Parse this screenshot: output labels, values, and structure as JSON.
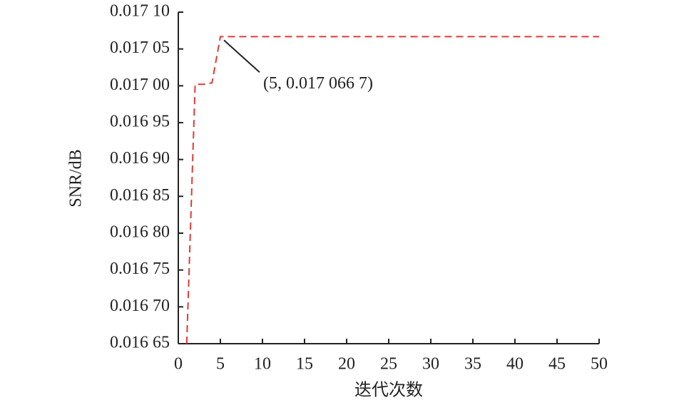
{
  "chart_data": {
    "type": "line",
    "xlabel": "迭代次数",
    "ylabel": "SNR/dB",
    "x": [
      1,
      2,
      3,
      4,
      5,
      6,
      7,
      8,
      9,
      10,
      11,
      12,
      13,
      14,
      15,
      16,
      17,
      18,
      19,
      20,
      21,
      22,
      23,
      24,
      25,
      26,
      27,
      28,
      29,
      30,
      31,
      32,
      33,
      34,
      35,
      36,
      37,
      38,
      39,
      40,
      41,
      42,
      43,
      44,
      45,
      46,
      47,
      48,
      49,
      50
    ],
    "series": [
      {
        "color": "#e03a33",
        "values": [
          0.01665,
          0.017002,
          0.017002,
          0.017004,
          0.0170667,
          0.0170667,
          0.0170667,
          0.0170667,
          0.0170667,
          0.0170667,
          0.0170667,
          0.0170667,
          0.0170667,
          0.0170667,
          0.0170667,
          0.0170667,
          0.0170667,
          0.0170667,
          0.0170667,
          0.0170667,
          0.0170667,
          0.0170667,
          0.0170667,
          0.0170667,
          0.0170667,
          0.0170667,
          0.0170667,
          0.0170667,
          0.0170667,
          0.0170667,
          0.0170667,
          0.0170667,
          0.0170667,
          0.0170667,
          0.0170667,
          0.0170667,
          0.0170667,
          0.0170667,
          0.0170667,
          0.0170667,
          0.0170667,
          0.0170667,
          0.0170667,
          0.0170667,
          0.0170667,
          0.0170667,
          0.0170667,
          0.0170667,
          0.0170667,
          0.0170667
        ]
      }
    ],
    "xlim": [
      0,
      50
    ],
    "xticks": [
      0,
      5,
      10,
      15,
      20,
      25,
      30,
      35,
      40,
      45,
      50
    ],
    "ylim": [
      0.01665,
      0.0171
    ],
    "yticks": [
      {
        "value": 0.01665,
        "label": "0.016 65"
      },
      {
        "value": 0.0167,
        "label": "0.016 70"
      },
      {
        "value": 0.01675,
        "label": "0.016 75"
      },
      {
        "value": 0.0168,
        "label": "0.016 80"
      },
      {
        "value": 0.01685,
        "label": "0.016 85"
      },
      {
        "value": 0.0169,
        "label": "0.016 90"
      },
      {
        "value": 0.01695,
        "label": "0.016 95"
      },
      {
        "value": 0.017,
        "label": "0.017 00"
      },
      {
        "value": 0.01705,
        "label": "0.017 05"
      },
      {
        "value": 0.0171,
        "label": "0.017 10"
      }
    ],
    "annotation": {
      "text": "(5, 0.017 066 7)",
      "x": 5,
      "y": 0.0170667
    }
  }
}
